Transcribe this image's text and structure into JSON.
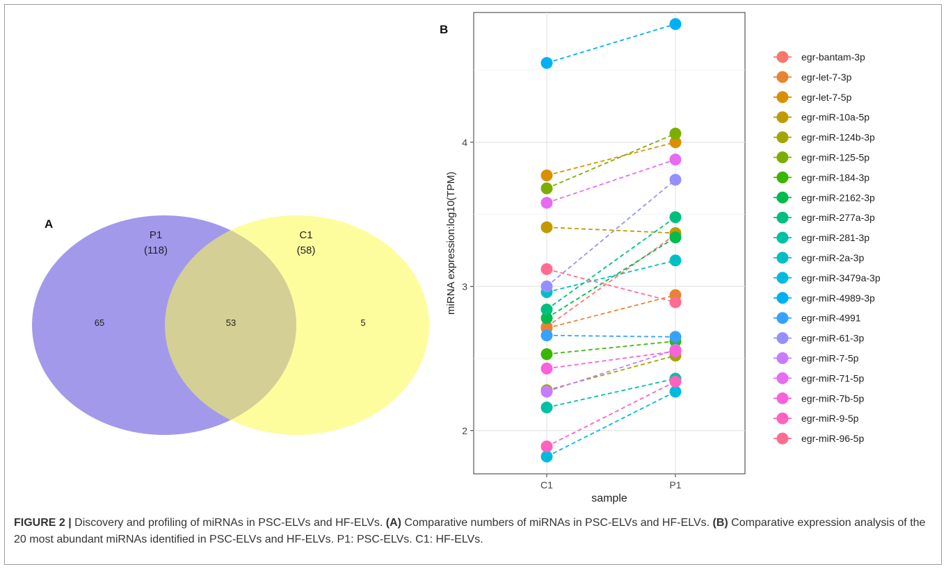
{
  "panel_a": {
    "label": "A",
    "circles": [
      {
        "name": "P1",
        "count_label": "(118)",
        "fill": "#9d94ea"
      },
      {
        "name": "C1",
        "count_label": "(58)",
        "fill": "#fbfb4e"
      }
    ],
    "region_counts": {
      "P1_only": "65",
      "both": "53",
      "C1_only": "5"
    }
  },
  "panel_b": {
    "label": "B"
  },
  "caption": {
    "figure": "FIGURE 2 |",
    "part1": " Discovery and profiling of miRNAs in PSC-ELVs and HF-ELVs. ",
    "a_tag": "(A)",
    "part2": " Comparative numbers of miRNAs in PSC-ELVs and HF-ELVs. ",
    "b_tag": "(B)",
    "part3": " Comparative expression analysis of the 20 most abundant miRNAs identified in PSC-ELVs and HF-ELVs. P1: PSC-ELVs. C1: HF-ELVs."
  },
  "chart_data": [
    {
      "type": "venn",
      "sets": [
        {
          "name": "P1",
          "size": 118
        },
        {
          "name": "C1",
          "size": 58
        }
      ],
      "regions": {
        "P1_only": 65,
        "P1_and_C1": 53,
        "C1_only": 5
      }
    },
    {
      "type": "line",
      "subtype": "paired-dot",
      "categories": [
        "C1",
        "P1"
      ],
      "xlabel": "sample",
      "ylabel": "miRNA expression:log10(TPM)",
      "ylim": [
        1.7,
        4.9
      ],
      "yticks": [
        2,
        3,
        4
      ],
      "grid": true,
      "legend_position": "right",
      "series": [
        {
          "name": "egr-bantam-3p",
          "color": "#f8766d",
          "values": [
            2.72,
            3.36
          ]
        },
        {
          "name": "egr-let-7-3p",
          "color": "#ea8331",
          "values": [
            2.71,
            2.94
          ]
        },
        {
          "name": "egr-let-7-5p",
          "color": "#d89000",
          "values": [
            3.77,
            4.0
          ]
        },
        {
          "name": "egr-miR-10a-5p",
          "color": "#c09b00",
          "values": [
            3.41,
            3.37
          ]
        },
        {
          "name": "egr-miR-124b-3p",
          "color": "#a3a500",
          "values": [
            2.28,
            2.52
          ]
        },
        {
          "name": "egr-miR-125-5p",
          "color": "#7cae00",
          "values": [
            3.68,
            4.06
          ]
        },
        {
          "name": "egr-miR-184-3p",
          "color": "#39b600",
          "values": [
            2.53,
            2.62
          ]
        },
        {
          "name": "egr-miR-2162-3p",
          "color": "#00bb4e",
          "values": [
            2.78,
            3.34
          ]
        },
        {
          "name": "egr-miR-277a-3p",
          "color": "#00bf7d",
          "values": [
            2.84,
            3.48
          ]
        },
        {
          "name": "egr-miR-281-3p",
          "color": "#00c1a3",
          "values": [
            2.16,
            2.36
          ]
        },
        {
          "name": "egr-miR-2a-3p",
          "color": "#00bfc4",
          "values": [
            2.96,
            3.18
          ]
        },
        {
          "name": "egr-miR-3479a-3p",
          "color": "#00bae0",
          "values": [
            1.82,
            2.27
          ]
        },
        {
          "name": "egr-miR-4989-3p",
          "color": "#00b0f6",
          "values": [
            4.55,
            4.82
          ]
        },
        {
          "name": "egr-miR-4991",
          "color": "#35a2ff",
          "values": [
            2.66,
            2.65
          ]
        },
        {
          "name": "egr-miR-61-3p",
          "color": "#9590ff",
          "values": [
            3.0,
            3.74
          ]
        },
        {
          "name": "egr-miR-7-5p",
          "color": "#c77cff",
          "values": [
            2.27,
            2.56
          ]
        },
        {
          "name": "egr-miR-71-5p",
          "color": "#e76bf3",
          "values": [
            3.58,
            3.88
          ]
        },
        {
          "name": "egr-miR-7b-5p",
          "color": "#fa62db",
          "values": [
            2.43,
            2.55
          ]
        },
        {
          "name": "egr-miR-9-5p",
          "color": "#ff62bc",
          "values": [
            1.89,
            2.34
          ]
        },
        {
          "name": "egr-miR-96-5p",
          "color": "#ff6c91",
          "values": [
            3.12,
            2.89
          ]
        }
      ]
    }
  ]
}
